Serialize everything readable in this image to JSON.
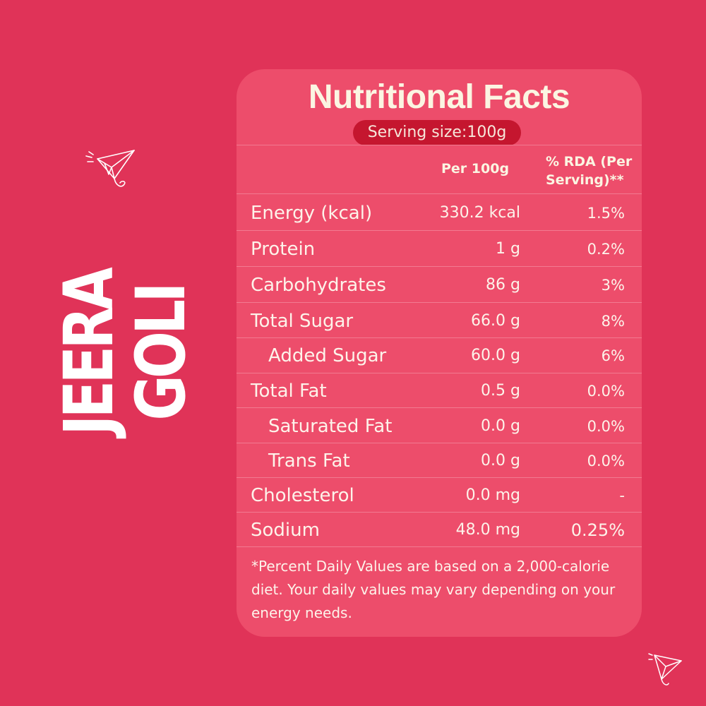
{
  "brand": {
    "line1": "JEERA",
    "line2": "GOLI"
  },
  "card": {
    "title": "Nutritional Facts",
    "serving_size": "Serving size:100g",
    "columns": {
      "per100": "Per 100g",
      "rda_line1": "% RDA (Per",
      "rda_line2": "Serving)**"
    },
    "rows": [
      {
        "nutrient": "Energy (kcal)",
        "per100": "330.2 kcal",
        "rda": "1.5%"
      },
      {
        "nutrient": "Protein",
        "per100": "1 g",
        "rda": "0.2%"
      },
      {
        "nutrient": "Carbohydrates",
        "per100": "86 g",
        "rda": "3%"
      },
      {
        "nutrient": "Total Sugar",
        "per100": "66.0 g",
        "rda": "8%"
      },
      {
        "nutrient": "Added Sugar",
        "per100": "60.0 g",
        "rda": "6%"
      },
      {
        "nutrient": "Total Fat",
        "per100": "0.5 g",
        "rda": "0.0%"
      },
      {
        "nutrient": "Saturated Fat",
        "per100": "0.0 g",
        "rda": "0.0%"
      },
      {
        "nutrient": "Trans Fat",
        "per100": "0.0 g",
        "rda": "0.0%"
      },
      {
        "nutrient": "Cholesterol",
        "per100": "0.0 mg",
        "rda": "-"
      },
      {
        "nutrient": "Sodium",
        "per100": "48.0 mg",
        "rda": "0.25%"
      }
    ],
    "footnote": "*Percent Daily Values are based on a 2,000-calorie diet. Your daily values may vary depending on your energy needs."
  },
  "icons": {
    "decoration": "paper-plane-icon"
  },
  "colors": {
    "background": "#e03358",
    "card": "#ed4d6b",
    "serving_pill": "#c5162f",
    "text": "#fdf3ea"
  }
}
